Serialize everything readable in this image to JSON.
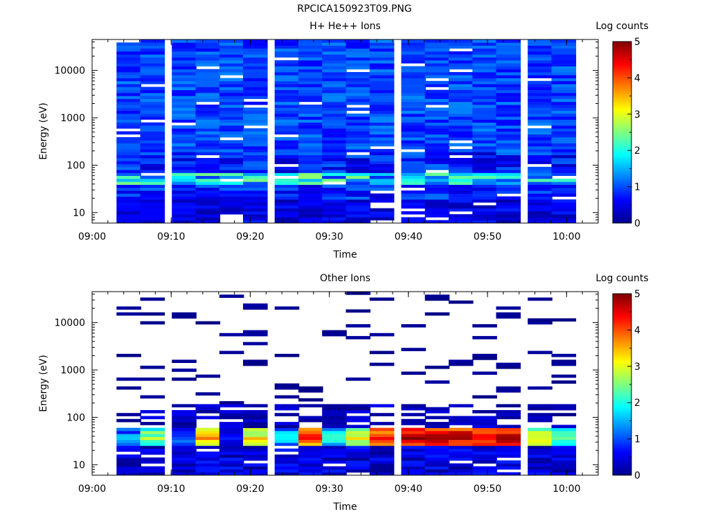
{
  "figure_title": "RPCICA150923T09.PNG",
  "chart_data": [
    {
      "type": "heatmap",
      "title": "H+ He++ Ions",
      "xlabel": "Time",
      "ylabel": "Energy (eV)",
      "y_scale": "log",
      "xlim": [
        "09:00",
        "10:04"
      ],
      "ylim": [
        6,
        45000
      ],
      "x_ticks": [
        "09:00",
        "09:10",
        "09:20",
        "09:30",
        "09:40",
        "09:50",
        "10:00"
      ],
      "y_ticks": [
        "10",
        "100",
        "1000",
        "10000"
      ],
      "time_bins_start": [
        "09:03",
        "09:06",
        "09:10",
        "09:13",
        "09:16",
        "09:19",
        "09:23",
        "09:26",
        "09:29",
        "09:32",
        "09:35",
        "09:39",
        "09:42",
        "09:45",
        "09:48",
        "09:51",
        "09:55",
        "09:58"
      ],
      "colorbar": {
        "label": "Log counts",
        "min": 0,
        "max": 5,
        "ticks": [
          "0",
          "1",
          "2",
          "3",
          "4",
          "5"
        ],
        "colormap": "jet"
      },
      "grid": false,
      "approximate_log_counts_by_energy_band": [
        {
          "energy_band": "6-20 eV",
          "typical_log_counts": 0.4
        },
        {
          "energy_band": "20-40 eV",
          "typical_log_counts": 0.7
        },
        {
          "energy_band": "40-70 eV",
          "typical_log_counts": 1.8
        },
        {
          "energy_band": "70-200 eV",
          "typical_log_counts": 0.7
        },
        {
          "energy_band": "200-45000 eV",
          "typical_log_counts": 0.9
        }
      ]
    },
    {
      "type": "heatmap",
      "title": "Other Ions",
      "xlabel": "Time",
      "ylabel": "Energy (eV)",
      "y_scale": "log",
      "xlim": [
        "09:00",
        "10:04"
      ],
      "ylim": [
        6,
        45000
      ],
      "x_ticks": [
        "09:00",
        "09:10",
        "09:20",
        "09:30",
        "09:40",
        "09:50",
        "10:00"
      ],
      "y_ticks": [
        "10",
        "100",
        "1000",
        "10000"
      ],
      "time_bins_start": [
        "09:03",
        "09:06",
        "09:10",
        "09:13",
        "09:16",
        "09:19",
        "09:23",
        "09:26",
        "09:29",
        "09:32",
        "09:35",
        "09:39",
        "09:42",
        "09:45",
        "09:48",
        "09:51",
        "09:55",
        "09:58"
      ],
      "colorbar": {
        "label": "Log counts",
        "min": 0,
        "max": 5,
        "ticks": [
          "0",
          "1",
          "2",
          "3",
          "4",
          "5"
        ],
        "colormap": "jet"
      },
      "grid": false,
      "peak_log_counts_30_50eV": [
        1.5,
        2.7,
        1.2,
        3.8,
        0.5,
        3.2,
        1.8,
        4.2,
        2.0,
        3.0,
        4.4,
        4.8,
        4.7,
        4.8,
        4.6,
        4.7,
        3.2,
        2.3
      ],
      "approximate_log_counts_by_energy_band": [
        {
          "energy_band": "6-25 eV",
          "typical_log_counts": 0.3
        },
        {
          "energy_band": "25-60 eV",
          "typical_log_counts": 3.5
        },
        {
          "energy_band": "60-200 eV",
          "typical_log_counts": 0.3
        },
        {
          "energy_band": "200-45000 eV",
          "typical_log_counts": 0.1
        }
      ]
    }
  ]
}
